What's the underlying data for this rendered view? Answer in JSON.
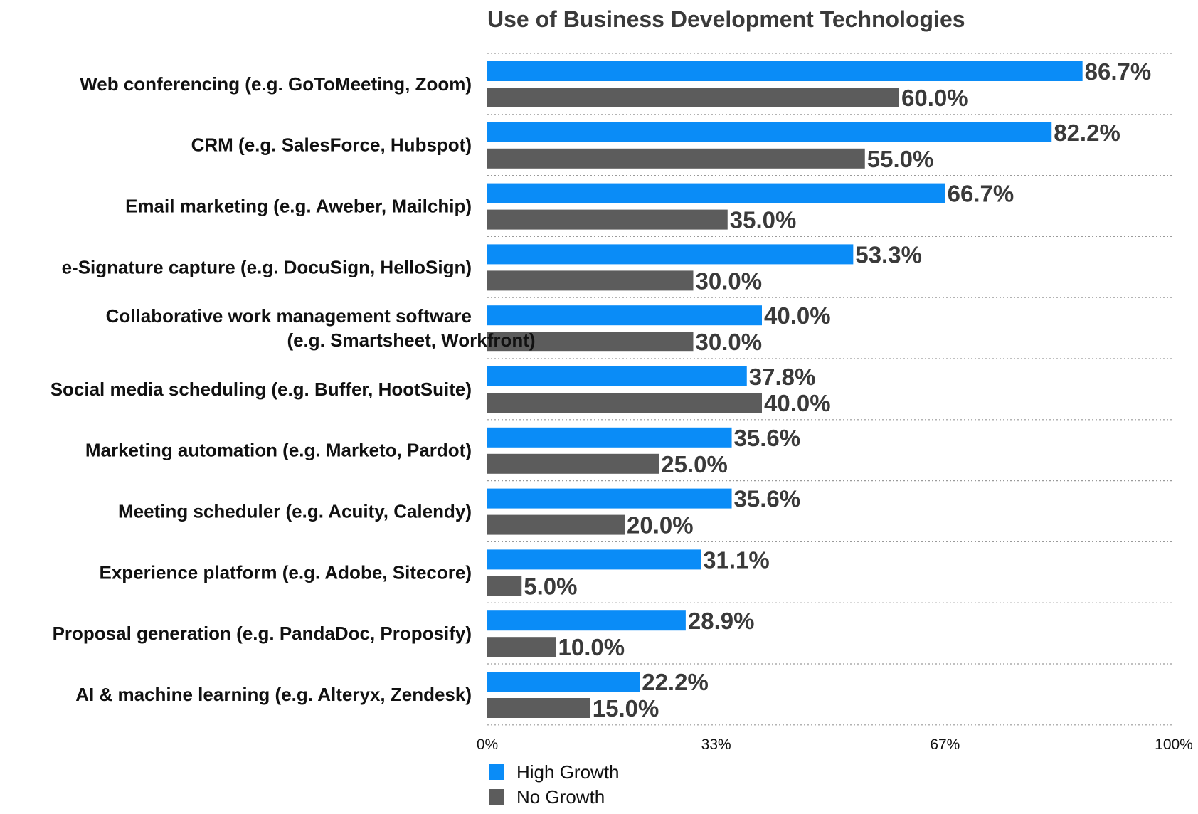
{
  "chart_data": {
    "type": "bar",
    "orientation": "horizontal",
    "title": "Use of Business Development Technologies",
    "categories": [
      [
        "Web conferencing (e.g. GoToMeeting, Zoom)"
      ],
      [
        "CRM (e.g. SalesForce, Hubspot)"
      ],
      [
        "Email marketing (e.g. Aweber, Mailchip)"
      ],
      [
        "e-Signature capture (e.g. DocuSign, HelloSign)"
      ],
      [
        "Collaborative work management software",
        "(e.g. Smartsheet, Workfront)"
      ],
      [
        "Social media scheduling (e.g. Buffer, HootSuite)"
      ],
      [
        "Marketing automation (e.g. Marketo, Pardot)"
      ],
      [
        "Meeting scheduler (e.g. Acuity, Calendy)"
      ],
      [
        "Experience platform (e.g. Adobe, Sitecore)"
      ],
      [
        "Proposal generation (e.g. PandaDoc, Proposify)"
      ],
      [
        "AI & machine learning (e.g. Alteryx, Zendesk)"
      ]
    ],
    "series": [
      {
        "name": "High Growth",
        "color": "#0a8cf7",
        "values": [
          86.7,
          82.2,
          66.7,
          53.3,
          40.0,
          37.8,
          35.6,
          35.6,
          31.1,
          28.9,
          22.2
        ],
        "labels": [
          "86.7%",
          "82.2%",
          "66.7%",
          "53.3%",
          "40.0%",
          "37.8%",
          "35.6%",
          "35.6%",
          "31.1%",
          "28.9%",
          "22.2%"
        ]
      },
      {
        "name": "No Growth",
        "color": "#5c5c5c",
        "values": [
          60.0,
          55.0,
          35.0,
          30.0,
          30.0,
          40.0,
          25.0,
          20.0,
          5.0,
          10.0,
          15.0
        ],
        "labels": [
          "60.0%",
          "55.0%",
          "35.0%",
          "30.0%",
          "30.0%",
          "40.0%",
          "25.0%",
          "20.0%",
          "5.0%",
          "10.0%",
          "15.0%"
        ]
      }
    ],
    "x_ticks": [
      {
        "value": 0,
        "label": "0%"
      },
      {
        "value": 33.333,
        "label": "33%"
      },
      {
        "value": 66.667,
        "label": "67%"
      },
      {
        "value": 100,
        "label": "100%"
      }
    ],
    "xlim": [
      0,
      100
    ],
    "grid": true,
    "legend_position": "bottom-left"
  }
}
